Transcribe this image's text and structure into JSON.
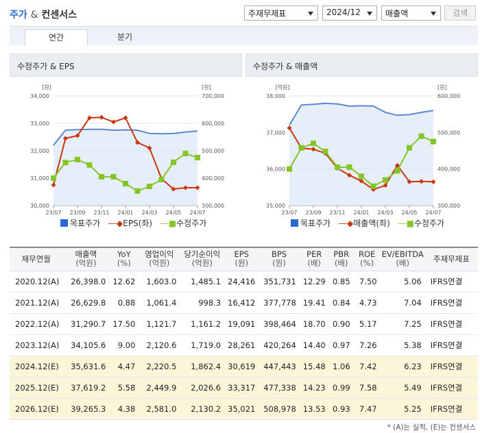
{
  "header": {
    "title_main": "주가",
    "title_amp": "&",
    "title_rest": "컨센서스",
    "select_financial": "주재무제표",
    "select_period": "2024/12",
    "select_metric": "매출액",
    "search_label": "검색"
  },
  "tabs": [
    {
      "label": "연간",
      "active": true
    },
    {
      "label": "분기",
      "active": false
    }
  ],
  "chart_data": [
    {
      "type": "line",
      "title": "수정주가 & EPS",
      "left_unit": "[원]",
      "right_unit": "[원]",
      "categories": [
        "23/07",
        "23/08",
        "23/09",
        "23/10",
        "23/11",
        "23/12",
        "24/01",
        "24/02",
        "24/03",
        "24/04",
        "24/05",
        "24/06",
        "24/07"
      ],
      "x_tick_labels": [
        "23/07",
        "23/09",
        "23/11",
        "24/01",
        "24/03",
        "24/05",
        "24/07"
      ],
      "left_ylim": [
        30000,
        34000
      ],
      "left_ticks": [
        "30,000",
        "31,000",
        "32,000",
        "33,000",
        "34,000"
      ],
      "right_ylim": [
        300000,
        700000
      ],
      "right_ticks": [
        "300,000",
        "400,000",
        "500,000",
        "600,000",
        "700,000"
      ],
      "series": [
        {
          "name": "목표주가",
          "axis": "right",
          "style": "area",
          "color": "#5a87d6",
          "values": [
            520000,
            575000,
            577000,
            578000,
            578000,
            575000,
            576000,
            575000,
            563000,
            562000,
            563000,
            568000,
            572000
          ]
        },
        {
          "name": "EPS(좌)",
          "axis": "left",
          "style": "diamond",
          "color": "#c9360f",
          "values": [
            30750,
            32450,
            32550,
            33200,
            33220,
            33050,
            33200,
            32300,
            32100,
            30980,
            30600,
            30650,
            30650
          ]
        },
        {
          "name": "수정주가",
          "axis": "right",
          "style": "square",
          "color": "#86c52a",
          "values": [
            400000,
            457000,
            468000,
            448000,
            405000,
            405000,
            380000,
            353000,
            370000,
            395000,
            458000,
            490000,
            475000
          ]
        }
      ]
    },
    {
      "type": "line",
      "title": "수정주가 & 매출액",
      "left_unit": "[억원]",
      "right_unit": "[원]",
      "categories": [
        "23/07",
        "23/08",
        "23/09",
        "23/10",
        "23/11",
        "23/12",
        "24/01",
        "24/02",
        "24/03",
        "24/04",
        "24/05",
        "24/06",
        "24/07"
      ],
      "x_tick_labels": [
        "23/07",
        "23/09",
        "23/11",
        "24/01",
        "24/03",
        "24/05",
        "24/07"
      ],
      "left_ylim": [
        35000,
        38000
      ],
      "left_ticks": [
        "35,000",
        "36,000",
        "37,000",
        "38,000"
      ],
      "right_ylim": [
        300000,
        600000
      ],
      "right_ticks": [
        "300,000",
        "400,000",
        "500,000",
        "600,000"
      ],
      "series": [
        {
          "name": "목표주가",
          "axis": "right",
          "style": "area",
          "color": "#5a87d6",
          "values": [
            520000,
            575000,
            577000,
            580000,
            578000,
            572000,
            573000,
            572000,
            555000,
            547000,
            549000,
            555000,
            560000
          ]
        },
        {
          "name": "매출액(좌)",
          "axis": "left",
          "style": "diamond",
          "color": "#c9360f",
          "values": [
            37120,
            36570,
            36540,
            36430,
            36020,
            35830,
            35670,
            35440,
            35550,
            36100,
            35650,
            35660,
            35650
          ]
        },
        {
          "name": "수정주가",
          "axis": "right",
          "style": "square",
          "color": "#86c52a",
          "values": [
            400000,
            458000,
            470000,
            448000,
            405000,
            405000,
            380000,
            353000,
            370000,
            395000,
            458000,
            490000,
            475000
          ]
        }
      ]
    }
  ],
  "table": {
    "headers": [
      {
        "label": "재무연월",
        "unit": ""
      },
      {
        "label": "매출액",
        "unit": "(억원)"
      },
      {
        "label": "YoY",
        "unit": "(%)"
      },
      {
        "label": "영업이익",
        "unit": "(억원)"
      },
      {
        "label": "당기순이익",
        "unit": "(억원)"
      },
      {
        "label": "EPS",
        "unit": "(원)"
      },
      {
        "label": "BPS",
        "unit": "(원)"
      },
      {
        "label": "PER",
        "unit": "(배)"
      },
      {
        "label": "PBR",
        "unit": "(배)"
      },
      {
        "label": "ROE",
        "unit": "(%)"
      },
      {
        "label": "EV/EBITDA",
        "unit": "(배)"
      },
      {
        "label": "주재무제표",
        "unit": ""
      }
    ],
    "rows": [
      {
        "estimate": false,
        "cells": [
          "2020.12(A)",
          "26,398.0",
          "12.62",
          "1,603.0",
          "1,485.1",
          "24,416",
          "351,731",
          "12.29",
          "0.85",
          "7.50",
          "5.06",
          "IFRS연결"
        ]
      },
      {
        "estimate": false,
        "cells": [
          "2021.12(A)",
          "26,629.8",
          "0.88",
          "1,061.4",
          "998.3",
          "16,412",
          "377,778",
          "19.41",
          "0.84",
          "4.73",
          "7.04",
          "IFRS연결"
        ]
      },
      {
        "estimate": false,
        "cells": [
          "2022.12(A)",
          "31,290.7",
          "17.50",
          "1,121.7",
          "1,161.2",
          "19,091",
          "398,464",
          "18.70",
          "0.90",
          "5.17",
          "7.25",
          "IFRS연결"
        ]
      },
      {
        "estimate": false,
        "cells": [
          "2023.12(A)",
          "34,105.6",
          "9.00",
          "2,120.6",
          "1,719.0",
          "28,261",
          "420,264",
          "14.40",
          "0.97",
          "7.26",
          "5.38",
          "IFRS연결"
        ]
      },
      {
        "estimate": true,
        "cells": [
          "2024.12(E)",
          "35,631.6",
          "4.47",
          "2,220.5",
          "1,862.4",
          "30,619",
          "447,443",
          "15.48",
          "1.06",
          "7.42",
          "6.23",
          "IFRS연결"
        ]
      },
      {
        "estimate": true,
        "cells": [
          "2025.12(E)",
          "37,619.2",
          "5.58",
          "2,449.9",
          "2,026.6",
          "33,317",
          "477,338",
          "14.23",
          "0.99",
          "7.58",
          "5.49",
          "IFRS연결"
        ]
      },
      {
        "estimate": true,
        "cells": [
          "2026.12(E)",
          "39,265.3",
          "4.38",
          "2,581.0",
          "2,130.2",
          "35,021",
          "508,978",
          "13.53",
          "0.93",
          "7.47",
          "5.25",
          "IFRS연결"
        ]
      }
    ]
  },
  "footnote": "* (A)는 실적, (E)는 컨센서스"
}
